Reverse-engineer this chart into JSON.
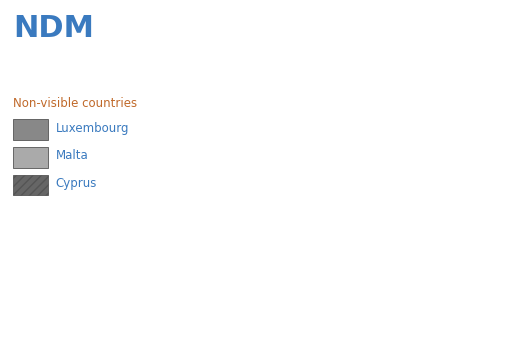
{
  "title": "NDM",
  "subtitle": "Non-visible countries",
  "legend_items": [
    {
      "label": "Luxembourg",
      "color": "#808080",
      "hatch": ""
    },
    {
      "label": "Malta",
      "color": "#999999",
      "hatch": ""
    },
    {
      "label": "Cyprus",
      "color": "#666666",
      "hatch": "////"
    }
  ],
  "title_color": "#3a7abf",
  "subtitle_color": "#c0692a",
  "legend_label_color": "#3a7abf",
  "background_color": "#ffffff",
  "xlim": [
    -15,
    55
  ],
  "ylim": [
    30,
    72
  ],
  "country_colors": {
    "Ireland": "#6aaa2a",
    "United Kingdom": "#f5d020",
    "Portugal": "#6aaa2a",
    "Spain": "#6aaa2a",
    "France": "#f5d020",
    "Belgium": "#a8cc44",
    "Netherlands": "#a8cc44",
    "Denmark": "#6aaa2a",
    "Norway": "#d8e8a0",
    "Sweden": "#d8e8a0",
    "Finland": "#6aaa2a",
    "Estonia": "#808080",
    "Latvia": "#a8cc44",
    "Lithuania": "#a8cc44",
    "Poland": "#a8cc44",
    "Germany": "#a8cc44",
    "Czech Republic": "#a8cc44",
    "Austria": "#d8e8a0",
    "Switzerland": "#d8e8a0",
    "Italy": "#f5d020",
    "Slovenia": "#d8e8a0",
    "Croatia": "#2d7a2d",
    "Hungary": "#a8cc44",
    "Slovakia": "#a8cc44",
    "Romania": "#a8cc44",
    "Bulgaria": "#a8cc44",
    "Serbia": "#808080",
    "Bosnia": "#808080",
    "Montenegro": "#808080",
    "Albania": "#2d7a2d",
    "North Macedonia": "#808080",
    "Greece": "#2d7a2d",
    "Turkey": "#a8cc44",
    "Ukraine": "#a8cc44",
    "Belarus": "#d8e8a0",
    "Moldova": "#d8e8a0",
    "Israel": "#f5d020"
  },
  "hatch_countries": [
    "Serbia",
    "Bosnia",
    "Montenegro",
    "North Macedonia",
    "Ukraine",
    "Turkey",
    "Cyprus_shape"
  ],
  "hatch_dark": [
    "Serbia",
    "Bosnia",
    "Montenegro",
    "North Macedonia"
  ],
  "hatch_light": [
    "Ukraine",
    "Turkey"
  ]
}
